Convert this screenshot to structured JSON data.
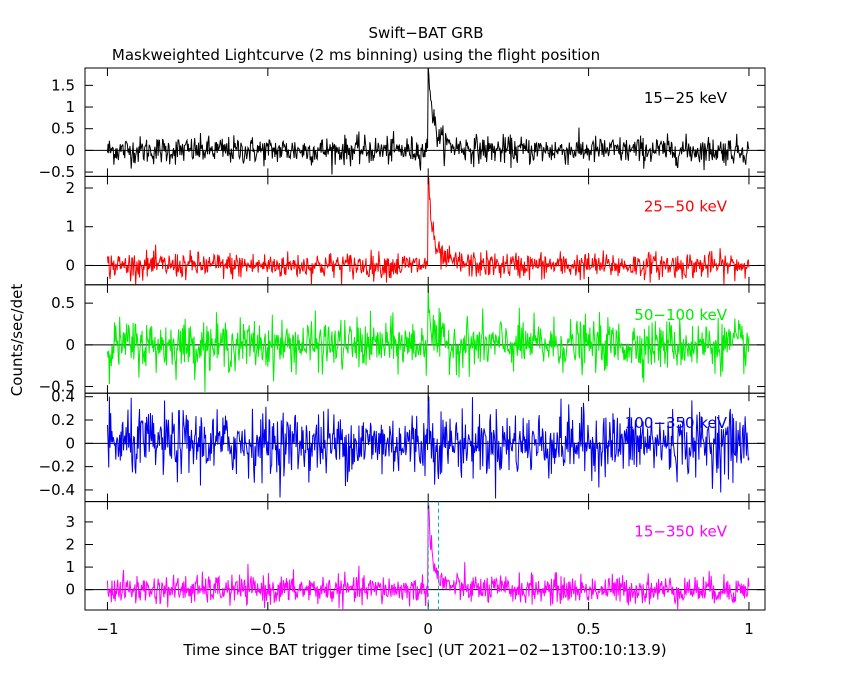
{
  "title": "Swift−BAT GRB",
  "subtitle": "Maskweighted Lightcurve (2 ms binning) using the flight position",
  "chart_data": {
    "type": "line",
    "title": "Swift−BAT GRB",
    "subtitle": "Maskweighted Lightcurve (2 ms binning) using the flight position",
    "xlabel": "Time since BAT trigger time [sec] (UT 2021−02−13T00:10:13.9)",
    "ylabel": "Counts/sec/det",
    "xlim": [
      -1.07,
      1.05
    ],
    "binning_sec": 0.002,
    "x_ticks": [
      {
        "value": -1,
        "label": "−1"
      },
      {
        "value": -0.5,
        "label": "−0.5"
      },
      {
        "value": 0,
        "label": "0"
      },
      {
        "value": 0.5,
        "label": "0.5"
      },
      {
        "value": 1,
        "label": "1"
      }
    ],
    "markers": [
      {
        "x": 0.0,
        "style": "dashed",
        "color": "#00b0b0"
      },
      {
        "x": 0.032,
        "style": "dashed",
        "color": "#00b0b0"
      }
    ],
    "panels": [
      {
        "name": "15−25 keV",
        "color": "#000000",
        "ylim": [
          -0.6,
          1.9
        ],
        "y_ticks": [
          {
            "value": -0.5,
            "label": "−0.5"
          },
          {
            "value": 0,
            "label": "0"
          },
          {
            "value": 0.5,
            "label": "0.5"
          },
          {
            "value": 1,
            "label": "1"
          },
          {
            "value": 1.5,
            "label": "1.5"
          }
        ],
        "noise_sigma": 0.16,
        "peak": 1.85,
        "decay_sec": 0.012,
        "tail": 0.35,
        "tail_decay_sec": 0.06
      },
      {
        "name": "25−50 keV",
        "color": "#ff0000",
        "ylim": [
          -0.5,
          2.3
        ],
        "y_ticks": [
          {
            "value": 0,
            "label": "0"
          },
          {
            "value": 1,
            "label": "1"
          },
          {
            "value": 2,
            "label": "2"
          }
        ],
        "noise_sigma": 0.17,
        "peak": 2.2,
        "decay_sec": 0.01,
        "tail": 0.4,
        "tail_decay_sec": 0.05
      },
      {
        "name": "50−100 keV",
        "color": "#00ee00",
        "ylim": [
          -0.58,
          0.72
        ],
        "y_ticks": [
          {
            "value": -0.5,
            "label": "−0.5"
          },
          {
            "value": 0,
            "label": "0"
          },
          {
            "value": 0.5,
            "label": "0.5"
          }
        ],
        "noise_sigma": 0.15,
        "peak": 0.7,
        "decay_sec": 0.006,
        "tail": 0.1,
        "tail_decay_sec": 0.03
      },
      {
        "name": "100−350 keV",
        "color": "#0000ee",
        "ylim": [
          -0.5,
          0.43
        ],
        "y_ticks": [
          {
            "value": -0.4,
            "label": "−0.4"
          },
          {
            "value": -0.2,
            "label": "−0.2"
          },
          {
            "value": 0,
            "label": "0"
          },
          {
            "value": 0.2,
            "label": "0.2"
          },
          {
            "value": 0.4,
            "label": "0.4"
          }
        ],
        "noise_sigma": 0.14,
        "peak": 0.35,
        "decay_sec": 0.004,
        "tail": 0.0,
        "tail_decay_sec": 0.02
      },
      {
        "name": "15−350 keV",
        "color": "#ff00ff",
        "ylim": [
          -0.9,
          3.9
        ],
        "y_ticks": [
          {
            "value": 0,
            "label": "0"
          },
          {
            "value": 1,
            "label": "1"
          },
          {
            "value": 2,
            "label": "2"
          },
          {
            "value": 3,
            "label": "3"
          }
        ],
        "noise_sigma": 0.32,
        "peak": 3.8,
        "decay_sec": 0.01,
        "tail": 0.7,
        "tail_decay_sec": 0.05
      }
    ]
  }
}
